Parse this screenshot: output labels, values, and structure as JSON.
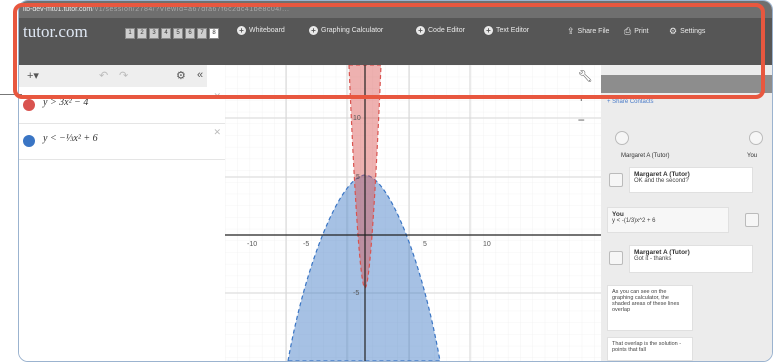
{
  "browser": {
    "url": "lib-dev-mt01.tutor.com",
    "url_rest": "/v1/session/2784/?ViewId=a67dfa67f6c2dc41be8c04/...",
    "page_numbers": [
      "1",
      "2",
      "3",
      "4",
      "5",
      "6",
      "7",
      "8"
    ],
    "active_page": "8"
  },
  "toolbar": {
    "logo": "tutor.com",
    "whiteboard_label": "Whiteboard",
    "graphing_calc_label": "Graphing Calculator",
    "code_editor_label": "Code Editor",
    "text_editor_label": "Text Editor",
    "share_file_label": "Share File",
    "print_label": "Print",
    "settings_label": "Settings"
  },
  "calculator": {
    "add_label": "+▾",
    "expressions": [
      {
        "latex": "y > 3x² − 4",
        "color": "#d9534f"
      },
      {
        "latex": "y < −⅓x² + 6",
        "color": "#3a75c4"
      }
    ],
    "collapse_label": "«"
  },
  "graph": {
    "xticks": [
      "-10",
      "-5",
      "5",
      "10"
    ],
    "yticks": [
      "10",
      "5",
      "-5"
    ],
    "zoom_in": "+",
    "zoom_out": "−"
  },
  "chat": {
    "share_label": "+ Share Contacts",
    "participants": [
      "Margaret A (Tutor)",
      "You"
    ],
    "messages": [
      {
        "author": "Margaret A (Tutor)",
        "text": "OK and the second?"
      },
      {
        "author": "You",
        "text": "y < -(1/3)x^2 + 6"
      },
      {
        "author": "Margaret A (Tutor)",
        "text": "Got it - thanks"
      },
      {
        "author": "",
        "text": "As you can see on the graphing calculator, the shaded areas of these lines overlap"
      },
      {
        "author": "",
        "text": "That overlap is the solution - points that fall"
      }
    ]
  }
}
